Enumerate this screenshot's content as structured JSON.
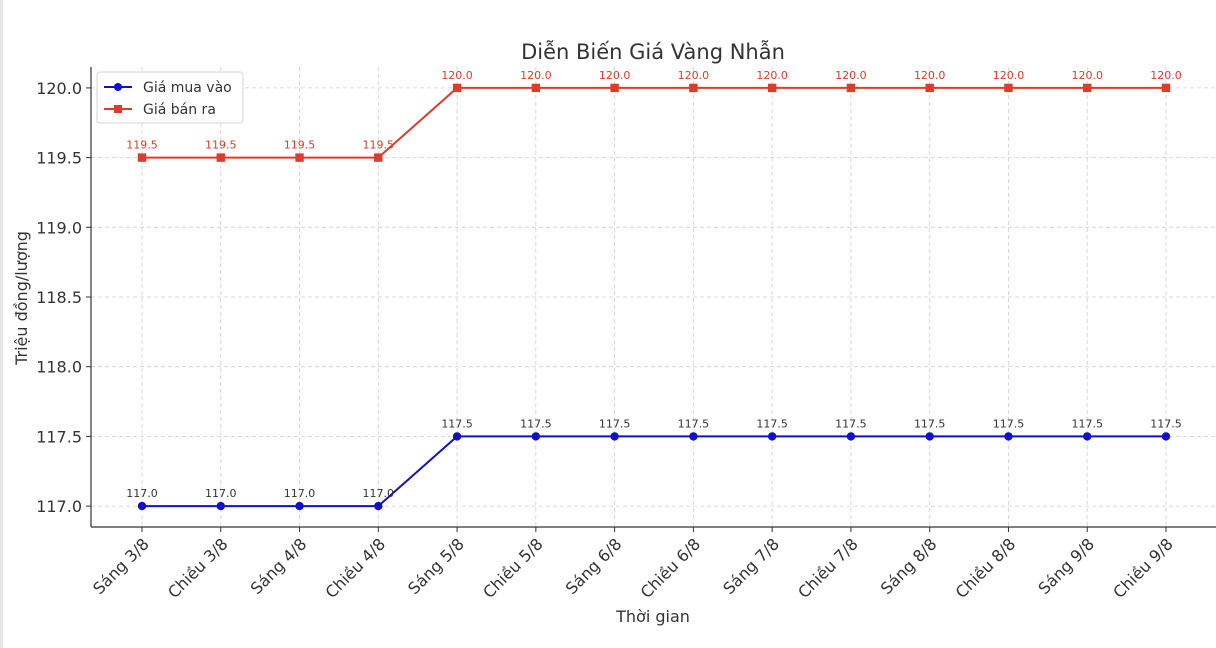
{
  "chart_data": {
    "type": "line",
    "title": "Diễn Biến Giá Vàng Nhẫn",
    "xlabel": "Thời gian",
    "ylabel": "Triệu đồng/lượng",
    "categories": [
      "Sáng 3/8",
      "Chiều 3/8",
      "Sáng 4/8",
      "Chiều 4/8",
      "Sáng 5/8",
      "Chiều 5/8",
      "Sáng 6/8",
      "Chiều 6/8",
      "Sáng 7/8",
      "Chiều 7/8",
      "Sáng 8/8",
      "Chiều 8/8",
      "Sáng 9/8",
      "Chiều 9/8"
    ],
    "series": [
      {
        "name": "Giá mua vào",
        "color": "#1010cc",
        "marker": "circle",
        "values": [
          117.0,
          117.0,
          117.0,
          117.0,
          117.5,
          117.5,
          117.5,
          117.5,
          117.5,
          117.5,
          117.5,
          117.5,
          117.5,
          117.5
        ]
      },
      {
        "name": "Giá bán ra",
        "color": "#e03a2c",
        "marker": "square",
        "values": [
          119.5,
          119.5,
          119.5,
          119.5,
          120.0,
          120.0,
          120.0,
          120.0,
          120.0,
          120.0,
          120.0,
          120.0,
          120.0,
          120.0
        ]
      }
    ],
    "ylim": [
      116.85,
      120.15
    ],
    "yticks": [
      117.0,
      117.5,
      118.0,
      118.5,
      119.0,
      119.5,
      120.0
    ],
    "grid": true,
    "legend": "top-left",
    "data_labels": true
  }
}
